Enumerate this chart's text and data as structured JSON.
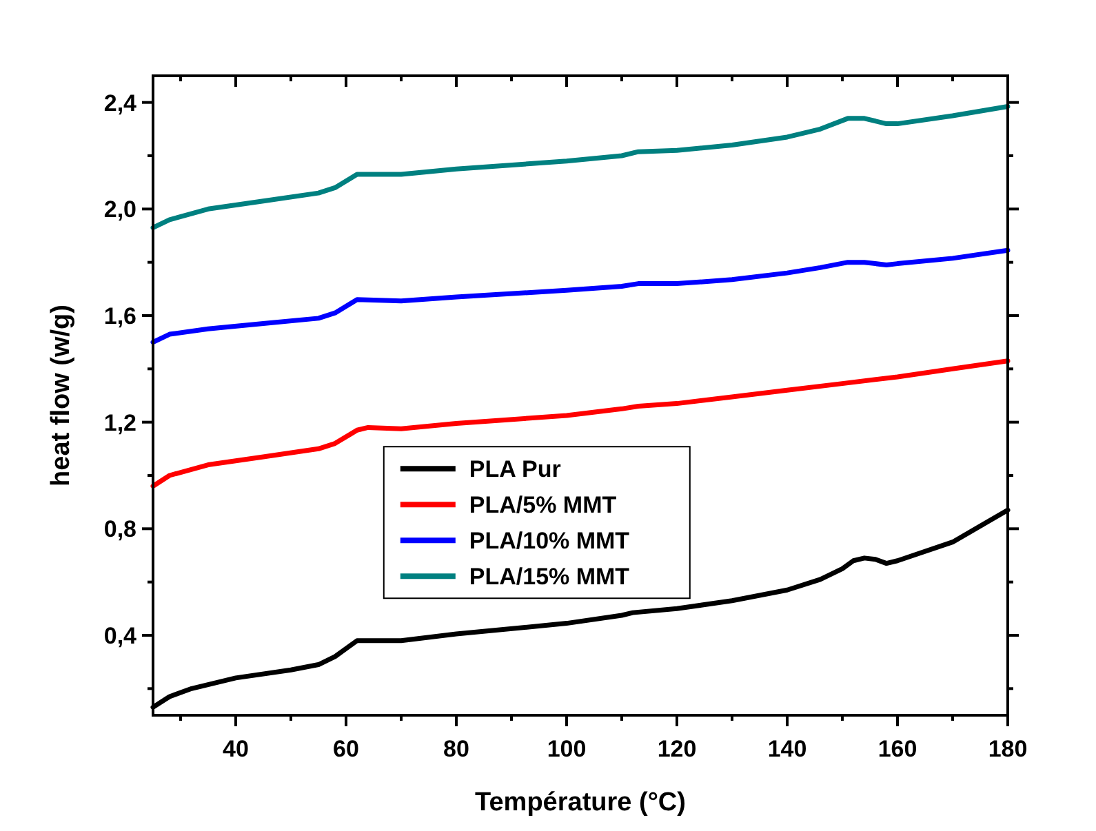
{
  "chart_data": {
    "type": "line",
    "xlabel": "Température (°C)",
    "ylabel": "heat flow (w/g)",
    "xlim": [
      25,
      180
    ],
    "xticks": [
      {
        "value": 30,
        "label": null
      },
      40,
      {
        "value": 50,
        "label": null
      },
      60,
      {
        "value": 70,
        "label": null
      },
      80,
      {
        "value": 90,
        "label": null
      },
      100,
      {
        "value": 110,
        "label": null
      },
      120,
      {
        "value": 130,
        "label": null
      },
      140,
      {
        "value": 150,
        "label": null
      },
      160,
      {
        "value": 170,
        "label": null
      },
      180
    ],
    "ylim": [
      0.1,
      2.5
    ],
    "yticks": [
      {
        "value": 0.2,
        "label": null
      },
      {
        "value": 0.4,
        "label": "0,4"
      },
      {
        "value": 0.6,
        "label": null
      },
      {
        "value": 0.8,
        "label": "0,8"
      },
      {
        "value": 1.0,
        "label": null
      },
      {
        "value": 1.2,
        "label": "1,2"
      },
      {
        "value": 1.4,
        "label": null
      },
      {
        "value": 1.6,
        "label": "1,6"
      },
      {
        "value": 1.8,
        "label": null
      },
      {
        "value": 2.0,
        "label": "2,0"
      },
      {
        "value": 2.2,
        "label": null
      },
      {
        "value": 2.4,
        "label": "2,4"
      }
    ],
    "grid": false,
    "legend": "center",
    "line_style": "solid",
    "marker": "none",
    "series": [
      {
        "name": "PLA Pur",
        "color": "#000000",
        "x": [
          25,
          28,
          32,
          40,
          50,
          55,
          58,
          62,
          65,
          70,
          80,
          100,
          110,
          112,
          120,
          130,
          140,
          146,
          150,
          152,
          154,
          156,
          158,
          160,
          170,
          180
        ],
        "values": [
          0.13,
          0.17,
          0.2,
          0.24,
          0.27,
          0.29,
          0.32,
          0.38,
          0.38,
          0.38,
          0.405,
          0.445,
          0.475,
          0.485,
          0.5,
          0.53,
          0.57,
          0.61,
          0.65,
          0.68,
          0.69,
          0.685,
          0.67,
          0.68,
          0.75,
          0.87
        ]
      },
      {
        "name": "PLA/5% MMT",
        "color": "#ff0000",
        "x": [
          25,
          28,
          35,
          45,
          55,
          58,
          62,
          64,
          70,
          80,
          100,
          110,
          113,
          120,
          130,
          140,
          150,
          160,
          170,
          180
        ],
        "values": [
          0.96,
          1.0,
          1.04,
          1.07,
          1.1,
          1.12,
          1.17,
          1.18,
          1.175,
          1.195,
          1.225,
          1.25,
          1.26,
          1.27,
          1.295,
          1.32,
          1.345,
          1.37,
          1.4,
          1.43
        ]
      },
      {
        "name": "PLA/10% MMT",
        "color": "#0000ff",
        "x": [
          25,
          28,
          35,
          45,
          55,
          58,
          62,
          70,
          80,
          100,
          110,
          113,
          120,
          130,
          140,
          146,
          151,
          154,
          158,
          160,
          170,
          180
        ],
        "values": [
          1.5,
          1.53,
          1.55,
          1.57,
          1.59,
          1.61,
          1.66,
          1.655,
          1.67,
          1.695,
          1.71,
          1.72,
          1.72,
          1.735,
          1.76,
          1.78,
          1.8,
          1.8,
          1.79,
          1.795,
          1.815,
          1.845
        ]
      },
      {
        "name": "PLA/15% MMT",
        "color": "#008080",
        "x": [
          25,
          28,
          35,
          45,
          55,
          58,
          62,
          70,
          80,
          100,
          110,
          113,
          120,
          130,
          140,
          146,
          151,
          154,
          158,
          160,
          170,
          180
        ],
        "values": [
          1.93,
          1.96,
          2.0,
          2.03,
          2.06,
          2.08,
          2.13,
          2.13,
          2.15,
          2.18,
          2.2,
          2.215,
          2.22,
          2.24,
          2.27,
          2.3,
          2.34,
          2.34,
          2.32,
          2.32,
          2.35,
          2.385
        ]
      }
    ]
  }
}
